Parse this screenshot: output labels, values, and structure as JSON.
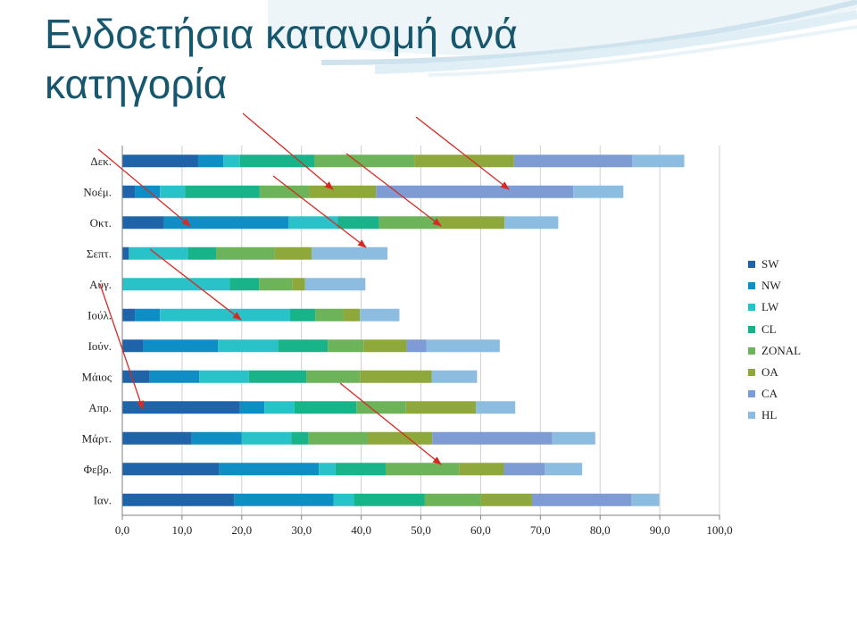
{
  "slide": {
    "title": "Ενδοετήσια κατανομή ανά κατηγορία"
  },
  "chart_data": {
    "type": "bar",
    "orientation": "horizontal",
    "stacked": true,
    "categories": [
      "Δεκ.",
      "Νοέμ.",
      "Οκτ.",
      "Σεπτ.",
      "Αύγ.",
      "Ιούλ.",
      "Ιούν.",
      "Μάιος",
      "Απρ.",
      "Μάρτ.",
      "Φεβρ.",
      "Ιαν."
    ],
    "series": [
      {
        "name": "SW",
        "color": "#1f63a8",
        "values": [
          12.7,
          2.1,
          7.0,
          1.1,
          0.0,
          2.1,
          3.5,
          4.6,
          19.7,
          11.6,
          16.2,
          18.7
        ]
      },
      {
        "name": "NW",
        "color": "#0f8ec6",
        "values": [
          4.2,
          4.2,
          20.8,
          0.0,
          0.0,
          4.2,
          12.5,
          8.3,
          4.1,
          8.4,
          16.7,
          16.7
        ]
      },
      {
        "name": "LW",
        "color": "#29c2c9",
        "values": [
          2.8,
          4.2,
          8.3,
          9.9,
          18.0,
          21.8,
          10.1,
          8.3,
          5.0,
          8.3,
          2.8,
          3.4
        ]
      },
      {
        "name": "CL",
        "color": "#19b38a",
        "values": [
          12.5,
          12.5,
          6.9,
          4.7,
          4.9,
          4.2,
          8.3,
          9.6,
          10.4,
          2.9,
          8.4,
          11.8
        ]
      },
      {
        "name": "ZONAL",
        "color": "#6cb35a",
        "values": [
          16.7,
          8.3,
          10.0,
          9.8,
          5.6,
          4.7,
          6.0,
          9.0,
          8.3,
          9.9,
          12.3,
          9.4
        ]
      },
      {
        "name": "OA",
        "color": "#8fa83c",
        "values": [
          16.7,
          11.2,
          11.0,
          6.2,
          2.1,
          2.8,
          7.2,
          12.0,
          11.7,
          10.8,
          7.5,
          8.6
        ]
      },
      {
        "name": "CA",
        "color": "#7f9bd3",
        "values": [
          19.8,
          33.0,
          0.0,
          0.0,
          0.0,
          0.0,
          3.3,
          0.0,
          0.0,
          20.1,
          6.8,
          16.6
        ]
      },
      {
        "name": "HL",
        "color": "#8cbde0",
        "values": [
          8.7,
          8.4,
          9.0,
          12.7,
          10.1,
          6.6,
          12.3,
          7.6,
          6.6,
          7.2,
          6.3,
          4.7
        ]
      }
    ],
    "xlim": [
      0,
      100
    ],
    "xticks": [
      "0,0",
      "10,0",
      "20,0",
      "30,0",
      "40,0",
      "50,0",
      "60,0",
      "70,0",
      "80,0",
      "90,0",
      "100,0"
    ],
    "grid": true,
    "legend_position": "right"
  }
}
